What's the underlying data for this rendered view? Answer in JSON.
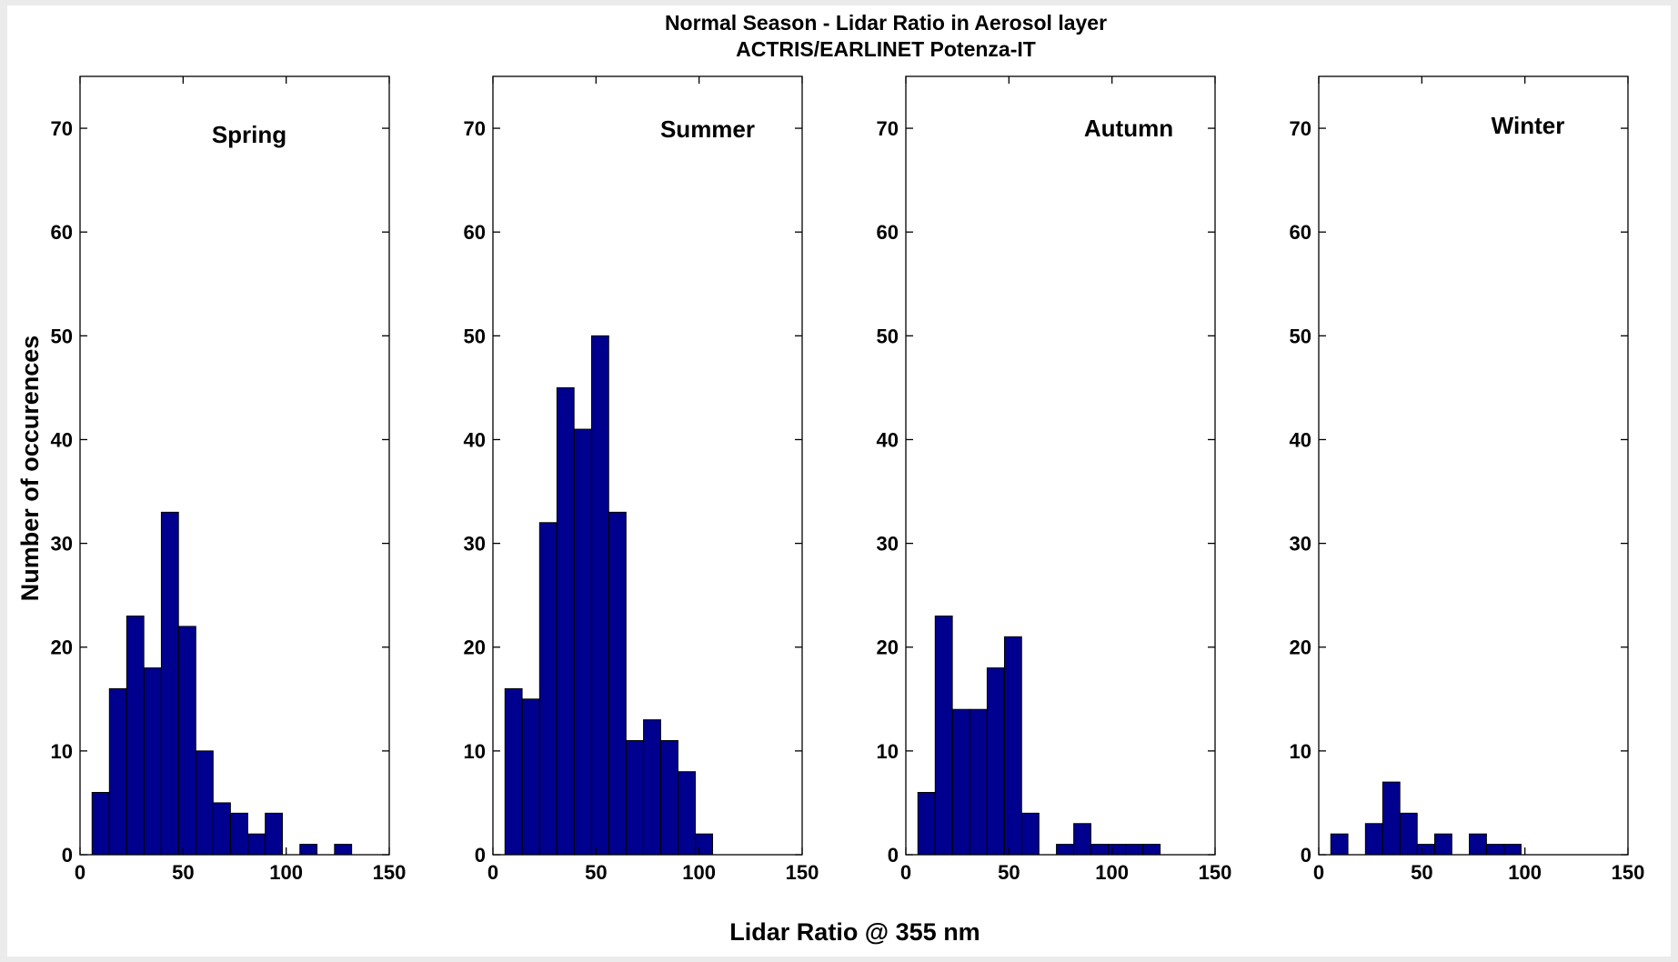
{
  "chart_data": {
    "type": "bar",
    "title": "Normal Season - Lidar Ratio in Aerosol layer",
    "subtitle": "ACTRIS/EARLINET Potenza-IT",
    "xlabel": "Lidar Ratio @ 355 nm",
    "ylabel": "Number of occurences",
    "xlim": [
      0,
      150
    ],
    "ylim": [
      0,
      75
    ],
    "xticks": [
      0,
      50,
      100,
      150
    ],
    "yticks": [
      0,
      10,
      20,
      30,
      40,
      50,
      60,
      70
    ],
    "bar_color": "#00008f",
    "bin_width": 8.3,
    "panels": [
      {
        "name": "Spring",
        "x": [
          10,
          18.4,
          26.8,
          35.2,
          43.6,
          52,
          60.4,
          68.8,
          77.2,
          85.6,
          94,
          102.4,
          110.8,
          119.2,
          127.6
        ],
        "values": [
          6,
          16,
          23,
          18,
          33,
          22,
          10,
          5,
          4,
          2,
          4,
          0,
          1,
          0,
          1
        ]
      },
      {
        "name": "Summer",
        "x": [
          10,
          18.4,
          26.8,
          35.2,
          43.6,
          52,
          60.4,
          68.8,
          77.2,
          85.6,
          94,
          102.4
        ],
        "values": [
          16,
          15,
          32,
          45,
          41,
          50,
          33,
          11,
          13,
          11,
          8,
          2
        ]
      },
      {
        "name": "Autumn",
        "x": [
          10,
          18.4,
          26.8,
          35.2,
          43.6,
          52,
          60.4,
          68.8,
          77.2,
          85.6,
          94,
          102.4,
          110.8,
          119.2
        ],
        "values": [
          6,
          23,
          14,
          14,
          18,
          21,
          4,
          0,
          1,
          3,
          1,
          1,
          1,
          1
        ]
      },
      {
        "name": "Winter",
        "x": [
          10,
          18.4,
          26.8,
          35.2,
          43.6,
          52,
          60.4,
          68.8,
          77.2,
          85.6,
          94
        ],
        "values": [
          2,
          0,
          3,
          7,
          4,
          1,
          2,
          0,
          2,
          1,
          1
        ]
      }
    ]
  }
}
